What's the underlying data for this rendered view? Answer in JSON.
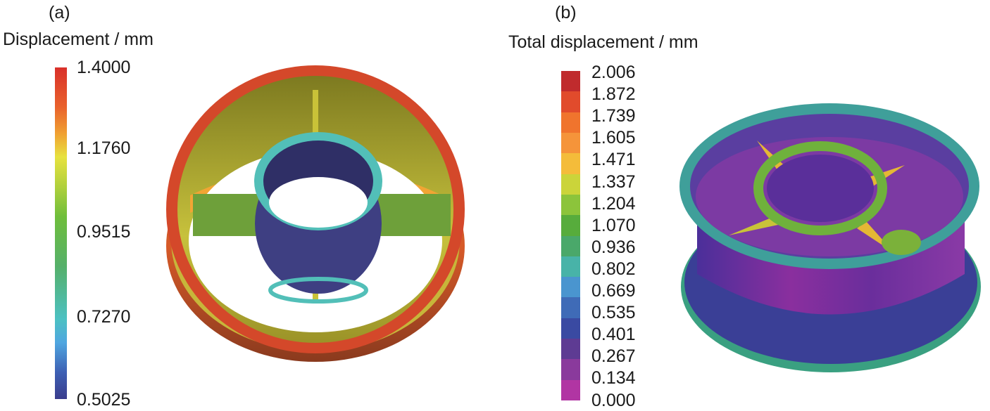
{
  "panel_a": {
    "label": "(a)",
    "legend_title": "Displacement / mm",
    "ticks": [
      "1.4000",
      "1.1760",
      "0.9515",
      "0.7270",
      "0.5025"
    ]
  },
  "panel_b": {
    "label": "(b)",
    "legend_title": "Total displacement / mm",
    "ticks": [
      "2.006",
      "1.872",
      "1.739",
      "1.605",
      "1.471",
      "1.337",
      "1.204",
      "1.070",
      "0.936",
      "0.802",
      "0.669",
      "0.535",
      "0.401",
      "0.267",
      "0.134",
      "0.000"
    ],
    "colors": [
      "#c02b2d",
      "#e14b2c",
      "#f0742d",
      "#f5943a",
      "#f4bc3a",
      "#cbd43a",
      "#8cc43b",
      "#57ac3c",
      "#4aa86a",
      "#48b3a8",
      "#4a95cf",
      "#3f6bb7",
      "#3a4aa2",
      "#5e3b93",
      "#8a3a9c",
      "#b135a3"
    ]
  }
}
